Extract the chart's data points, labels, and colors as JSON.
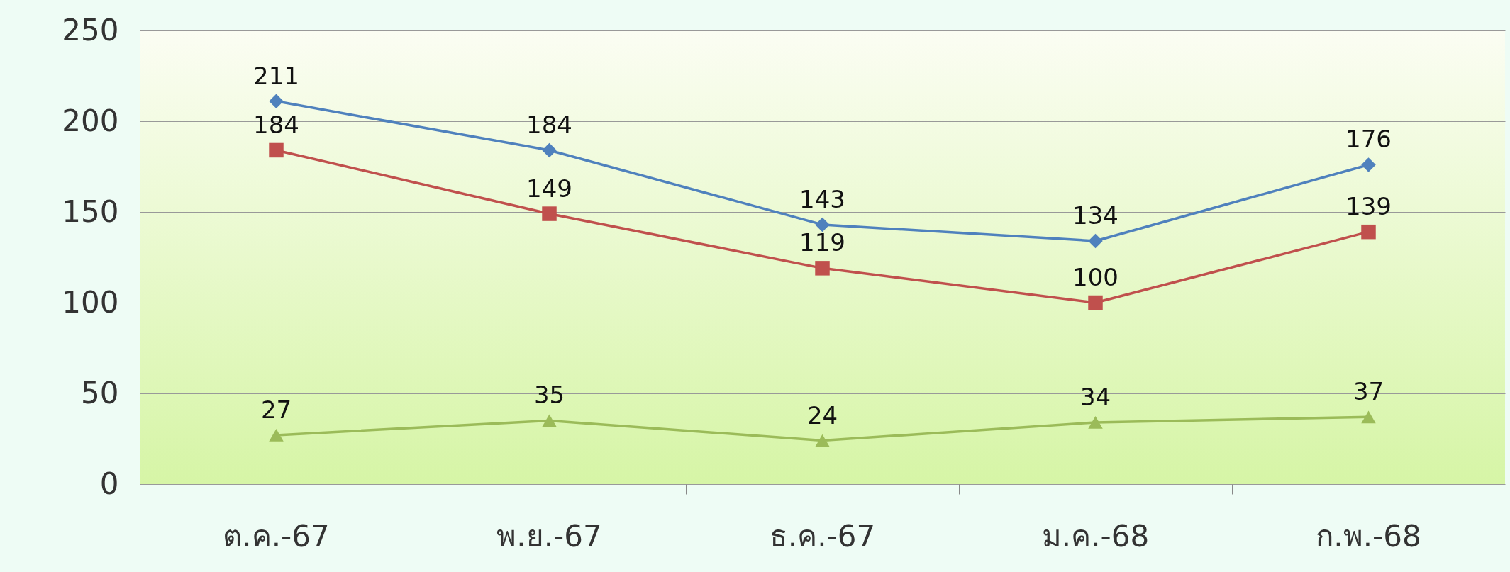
{
  "chart_data": {
    "type": "line",
    "categories": [
      "ต.ค.-67",
      "พ.ย.-67",
      "ธ.ค.-67",
      "ม.ค.-68",
      "ก.พ.-68"
    ],
    "series": [
      {
        "color": "#4f81bd",
        "marker": "diamond",
        "values": [
          211,
          184,
          143,
          134,
          176
        ]
      },
      {
        "color": "#c0504d",
        "marker": "square",
        "values": [
          184,
          149,
          119,
          100,
          139
        ]
      },
      {
        "color": "#9bbb59",
        "marker": "triangle",
        "values": [
          27,
          35,
          24,
          34,
          37
        ]
      }
    ],
    "ylim": [
      0,
      250
    ],
    "yticks": [
      0,
      50,
      100,
      150,
      200,
      250
    ],
    "grid": "y",
    "data_labels": true
  }
}
